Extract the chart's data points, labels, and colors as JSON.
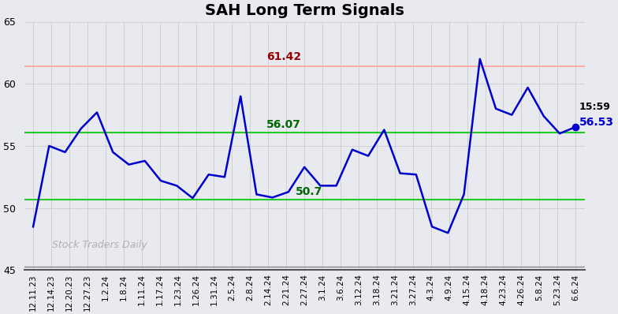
{
  "title": "SAH Long Term Signals",
  "xlabels": [
    "12.11.23",
    "12.14.23",
    "12.20.23",
    "12.27.23",
    "1.2.24",
    "1.8.24",
    "1.11.24",
    "1.17.24",
    "1.23.24",
    "1.26.24",
    "1.31.24",
    "2.5.24",
    "2.8.24",
    "2.14.24",
    "2.21.24",
    "2.27.24",
    "3.1.24",
    "3.6.24",
    "3.12.24",
    "3.18.24",
    "3.21.24",
    "3.27.24",
    "4.3.24",
    "4.9.24",
    "4.15.24",
    "4.18.24",
    "4.23.24",
    "4.26.24",
    "5.8.24",
    "5.23.24",
    "6.6.24"
  ],
  "prices": [
    48.5,
    55.0,
    54.5,
    56.4,
    57.7,
    54.5,
    53.5,
    53.8,
    52.2,
    51.8,
    50.8,
    52.7,
    52.5,
    59.0,
    51.1,
    50.85,
    51.3,
    53.3,
    51.8,
    51.8,
    54.7,
    54.2,
    56.3,
    52.8,
    52.7,
    48.5,
    48.0,
    51.1,
    62.0,
    58.0,
    57.5,
    59.7,
    57.4,
    56.0,
    56.53
  ],
  "red_line": 61.42,
  "green_line_upper": 56.07,
  "green_line_lower": 50.7,
  "ylim": [
    45,
    65
  ],
  "yticks": [
    45,
    50,
    55,
    60,
    65
  ],
  "last_label_time": "15:59",
  "last_label_value": "56.53",
  "watermark": "Stock Traders Daily",
  "line_color": "#0000cc",
  "red_line_color": "#ffaaaa",
  "green_line_color": "#22cc22",
  "background_color": "#e8eaf0",
  "plot_bg_color": "#e8eaf0",
  "grid_color": "#cccccc",
  "title_fontsize": 14,
  "red_label_color": "#990000",
  "green_label_color": "#006600"
}
